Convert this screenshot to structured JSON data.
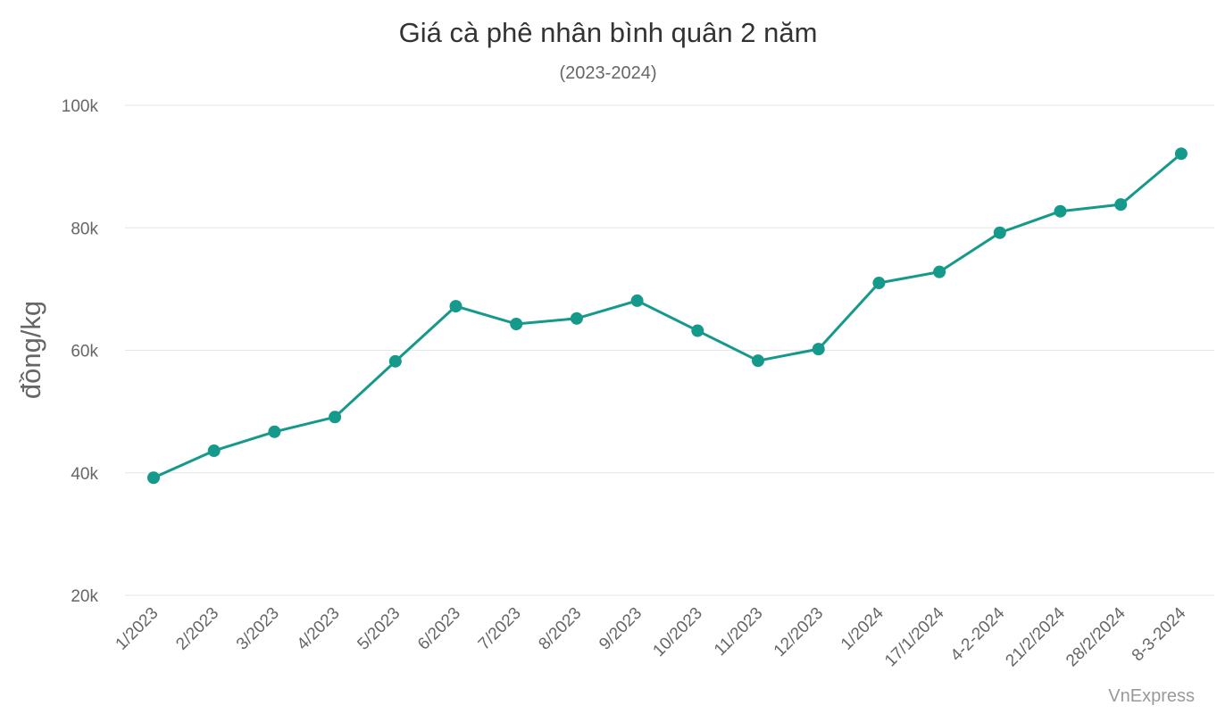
{
  "chart_data": {
    "type": "line",
    "title": "Giá cà phê nhân bình quân 2 năm",
    "subtitle": "(2023-2024)",
    "xlabel": "",
    "ylabel": "đồng/kg",
    "ylim": [
      20000,
      100000
    ],
    "yticks": [
      {
        "value": 20000,
        "label": "20k"
      },
      {
        "value": 40000,
        "label": "40k"
      },
      {
        "value": 60000,
        "label": "60k"
      },
      {
        "value": 80000,
        "label": "80k"
      },
      {
        "value": 100000,
        "label": "100k"
      }
    ],
    "grid": true,
    "categories": [
      "1/2023",
      "2/2023",
      "3/2023",
      "4/2023",
      "5/2023",
      "6/2023",
      "7/2023",
      "8/2023",
      "9/2023",
      "10/2023",
      "11/2023",
      "12/2023",
      "1/2024",
      "17/1/2024",
      "4-2-2024",
      "21/2/2024",
      "28/2/2024",
      "8-3-2024"
    ],
    "series": [
      {
        "color": "#15998a",
        "values": [
          39200,
          43600,
          46700,
          49100,
          58200,
          67200,
          64300,
          65200,
          68100,
          63200,
          58300,
          60200,
          71000,
          72800,
          79200,
          82700,
          83800,
          92100
        ]
      }
    ],
    "credit": "VnExpress"
  }
}
